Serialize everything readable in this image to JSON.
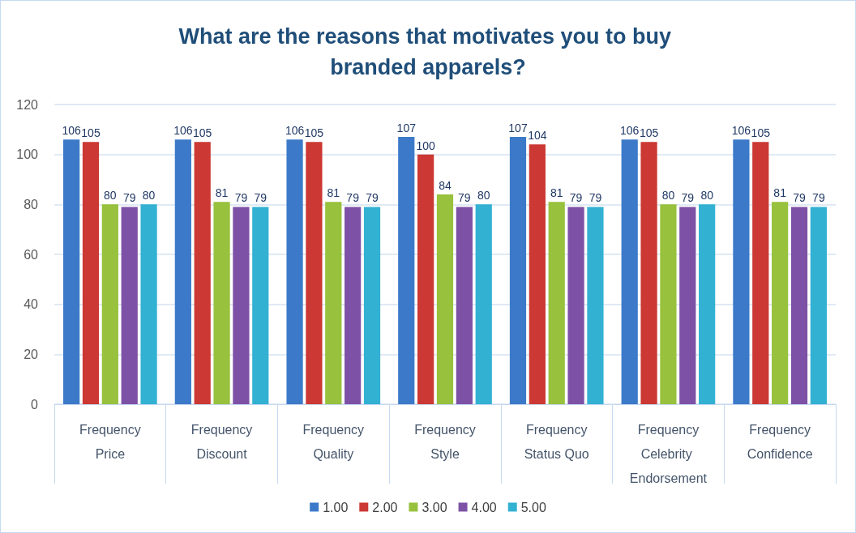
{
  "chart_data": {
    "type": "bar",
    "title": "What are the reasons that motivates you to buy branded apparels?",
    "categories": [
      "Frequency\nPrice",
      "Frequency\nDiscount",
      "Frequency\nQuality",
      "Frequency\nStyle",
      "Frequency\nStatus Quo",
      "Frequency\nCelebrity Endorsement",
      "Frequency\nConfidence"
    ],
    "series": [
      {
        "name": "1.00",
        "color": "#3c7ac9",
        "values": [
          106,
          106,
          106,
          107,
          107,
          106,
          106
        ]
      },
      {
        "name": "2.00",
        "color": "#cc3833",
        "values": [
          105,
          105,
          105,
          100,
          104,
          105,
          105
        ]
      },
      {
        "name": "3.00",
        "color": "#98c13d",
        "values": [
          80,
          81,
          81,
          84,
          81,
          80,
          81
        ]
      },
      {
        "name": "4.00",
        "color": "#7d52a6",
        "values": [
          79,
          79,
          79,
          79,
          79,
          79,
          79
        ]
      },
      {
        "name": "5.00",
        "color": "#33b1d2",
        "values": [
          80,
          79,
          79,
          80,
          79,
          80,
          79
        ]
      }
    ],
    "ylim": [
      0,
      120
    ],
    "yticks": [
      0,
      20,
      40,
      60,
      80,
      100,
      120
    ],
    "grid": "y",
    "legend": "bottom",
    "data_labels": true
  }
}
